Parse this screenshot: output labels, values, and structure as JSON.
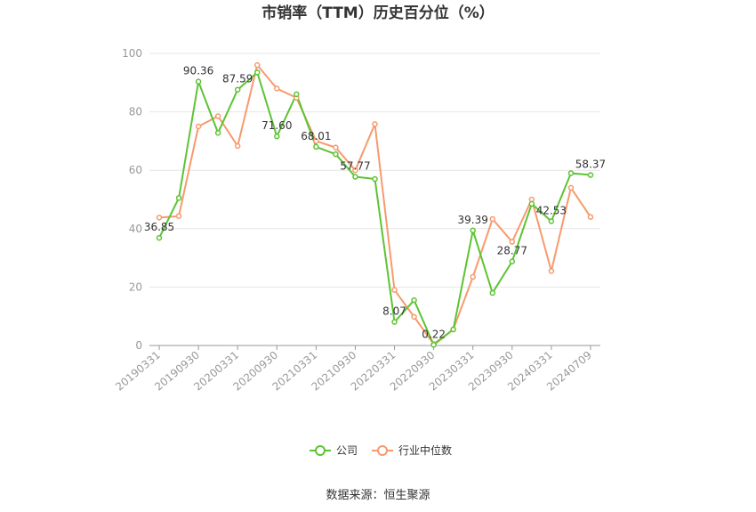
{
  "chart_data": {
    "type": "line",
    "title": "市销率（TTM）历史百分位（%）",
    "x": [
      "20190331",
      "20190630",
      "20190930",
      "20191231",
      "20200331",
      "20200630",
      "20200930",
      "20201231",
      "20210331",
      "20210630",
      "20210930",
      "20211231",
      "20220331",
      "20220630",
      "20220930",
      "20221231",
      "20230331",
      "20230630",
      "20230930",
      "20231231",
      "20240331",
      "20240630",
      "20240709"
    ],
    "x_tick_labels": [
      "20190331",
      "20190930",
      "20200331",
      "20200930",
      "20210331",
      "20210930",
      "20220331",
      "20220930",
      "20230331",
      "20230930",
      "20240331",
      "20240709"
    ],
    "ylim": [
      0,
      100
    ],
    "y_ticks": [
      0,
      20,
      40,
      60,
      80,
      100
    ],
    "grid": true,
    "legend_position": "bottom",
    "series": [
      {
        "name": "公司",
        "color": "#5cc433",
        "values": [
          36.85,
          50.5,
          90.36,
          72.8,
          87.59,
          93.5,
          71.6,
          86.0,
          68.01,
          65.5,
          57.77,
          57.0,
          8.07,
          15.5,
          0.22,
          5.5,
          39.39,
          18.0,
          28.77,
          48.5,
          42.53,
          59.0,
          58.37
        ]
      },
      {
        "name": "行业中位数",
        "color": "#f79a6e",
        "values": [
          43.8,
          44.3,
          75.0,
          78.5,
          68.3,
          96.0,
          88.0,
          84.8,
          70.0,
          67.8,
          60.0,
          75.8,
          19.0,
          9.8,
          0.5,
          5.5,
          23.5,
          43.3,
          35.5,
          50.0,
          25.5,
          54.0,
          44.0
        ]
      }
    ],
    "data_labels": [
      {
        "series": 0,
        "index": 0,
        "text": "36.85"
      },
      {
        "series": 0,
        "index": 2,
        "text": "90.36"
      },
      {
        "series": 0,
        "index": 4,
        "text": "87.59"
      },
      {
        "series": 0,
        "index": 6,
        "text": "71.60"
      },
      {
        "series": 0,
        "index": 8,
        "text": "68.01"
      },
      {
        "series": 0,
        "index": 10,
        "text": "57.77"
      },
      {
        "series": 0,
        "index": 12,
        "text": "8.07"
      },
      {
        "series": 0,
        "index": 14,
        "text": "0.22"
      },
      {
        "series": 0,
        "index": 16,
        "text": "39.39"
      },
      {
        "series": 0,
        "index": 18,
        "text": "28.77"
      },
      {
        "series": 0,
        "index": 20,
        "text": "42.53"
      },
      {
        "series": 0,
        "index": 22,
        "text": "58.37"
      }
    ]
  },
  "source_text": "数据来源：恒生聚源"
}
